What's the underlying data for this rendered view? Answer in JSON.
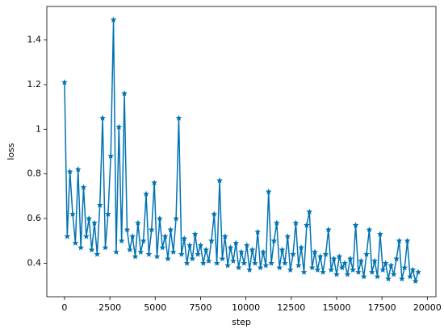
{
  "chart_data": {
    "type": "line",
    "xlabel": "step",
    "ylabel": "loss",
    "color": "#0173b2",
    "marker": "star",
    "x": [
      0,
      150,
      300,
      450,
      600,
      750,
      900,
      1050,
      1200,
      1350,
      1500,
      1650,
      1800,
      1950,
      2100,
      2250,
      2400,
      2550,
      2700,
      2850,
      3000,
      3150,
      3300,
      3450,
      3600,
      3750,
      3900,
      4050,
      4200,
      4350,
      4500,
      4650,
      4800,
      4950,
      5100,
      5250,
      5400,
      5550,
      5700,
      5850,
      6000,
      6150,
      6300,
      6450,
      6600,
      6750,
      6900,
      7050,
      7200,
      7350,
      7500,
      7650,
      7800,
      7950,
      8100,
      8250,
      8400,
      8550,
      8700,
      8850,
      9000,
      9150,
      9300,
      9450,
      9600,
      9750,
      9900,
      10050,
      10200,
      10350,
      10500,
      10650,
      10800,
      10950,
      11100,
      11250,
      11400,
      11550,
      11700,
      11850,
      12000,
      12150,
      12300,
      12450,
      12600,
      12750,
      12900,
      13050,
      13200,
      13350,
      13500,
      13650,
      13800,
      13950,
      14100,
      14250,
      14400,
      14550,
      14700,
      14850,
      15000,
      15150,
      15300,
      15450,
      15600,
      15750,
      15900,
      16050,
      16200,
      16350,
      16500,
      16650,
      16800,
      16950,
      17100,
      17250,
      17400,
      17550,
      17700,
      17850,
      18000,
      18150,
      18300,
      18450,
      18600,
      18750,
      18900,
      19050,
      19200,
      19350,
      19500
    ],
    "values": [
      1.21,
      0.52,
      0.81,
      0.62,
      0.49,
      0.82,
      0.47,
      0.74,
      0.52,
      0.6,
      0.46,
      0.58,
      0.44,
      0.66,
      1.05,
      0.47,
      0.62,
      0.88,
      1.49,
      0.45,
      1.01,
      0.5,
      1.16,
      0.55,
      0.46,
      0.52,
      0.43,
      0.58,
      0.45,
      0.5,
      0.71,
      0.44,
      0.55,
      0.76,
      0.43,
      0.6,
      0.47,
      0.52,
      0.42,
      0.55,
      0.45,
      0.6,
      1.05,
      0.44,
      0.51,
      0.4,
      0.48,
      0.42,
      0.53,
      0.44,
      0.48,
      0.4,
      0.46,
      0.41,
      0.5,
      0.62,
      0.4,
      0.77,
      0.42,
      0.52,
      0.39,
      0.47,
      0.41,
      0.49,
      0.38,
      0.45,
      0.4,
      0.48,
      0.37,
      0.46,
      0.4,
      0.54,
      0.38,
      0.45,
      0.39,
      0.72,
      0.4,
      0.5,
      0.58,
      0.38,
      0.46,
      0.4,
      0.52,
      0.37,
      0.44,
      0.58,
      0.39,
      0.47,
      0.36,
      0.57,
      0.63,
      0.38,
      0.45,
      0.37,
      0.43,
      0.36,
      0.44,
      0.55,
      0.37,
      0.42,
      0.35,
      0.43,
      0.38,
      0.4,
      0.35,
      0.42,
      0.37,
      0.57,
      0.36,
      0.41,
      0.34,
      0.44,
      0.55,
      0.36,
      0.41,
      0.34,
      0.53,
      0.37,
      0.4,
      0.33,
      0.39,
      0.35,
      0.42,
      0.5,
      0.33,
      0.38,
      0.5,
      0.34,
      0.37,
      0.32,
      0.36
    ],
    "xlim": [
      -975,
      20475
    ],
    "ylim": [
      0.25,
      1.55
    ],
    "xticks": [
      0,
      2500,
      5000,
      7500,
      10000,
      12500,
      15000,
      17500,
      20000
    ],
    "yticks": [
      0.4,
      0.6,
      0.8,
      1.0,
      1.2,
      1.4
    ]
  }
}
